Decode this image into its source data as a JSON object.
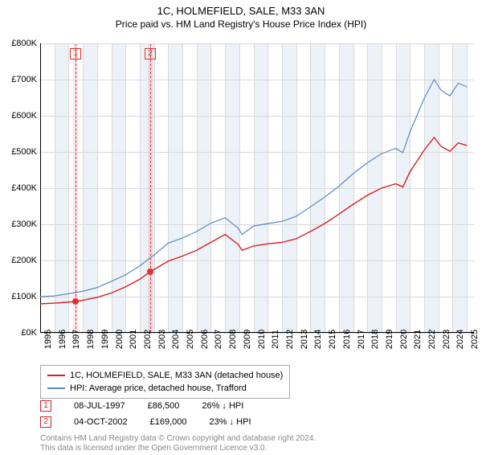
{
  "title": "1C, HOLMEFIELD, SALE, M33 3AN",
  "subtitle": "Price paid vs. HM Land Registry's House Price Index (HPI)",
  "chart": {
    "type": "line",
    "background_color": "#ffffff",
    "grid_color": "#d9d9d9",
    "grid_alt_band_color": "#edf2f8",
    "ylim": [
      0,
      800000
    ],
    "ytick_step": 100000,
    "ytick_labels": [
      "£0K",
      "£100K",
      "£200K",
      "£300K",
      "£400K",
      "£500K",
      "£600K",
      "£700K",
      "£800K"
    ],
    "xlim": [
      1995,
      2025.5
    ],
    "xticks": [
      1995,
      1996,
      1997,
      1998,
      1999,
      2000,
      2001,
      2002,
      2003,
      2004,
      2005,
      2006,
      2007,
      2008,
      2009,
      2010,
      2011,
      2012,
      2013,
      2014,
      2015,
      2016,
      2017,
      2018,
      2019,
      2020,
      2021,
      2022,
      2023,
      2024,
      2025
    ],
    "marker_band_color": "#e03131",
    "marker_band_opacity": 0.12,
    "series": [
      {
        "name": "HPI: Average price, detached house, Trafford",
        "color": "#5b89c3",
        "line_width": 1.2,
        "points": [
          [
            1995,
            100000
          ],
          [
            1996,
            102000
          ],
          [
            1997,
            108000
          ],
          [
            1998,
            115000
          ],
          [
            1999,
            125000
          ],
          [
            2000,
            142000
          ],
          [
            2001,
            160000
          ],
          [
            2002,
            185000
          ],
          [
            2003,
            215000
          ],
          [
            2004,
            248000
          ],
          [
            2005,
            262000
          ],
          [
            2006,
            280000
          ],
          [
            2007,
            303000
          ],
          [
            2008,
            318000
          ],
          [
            2008.9,
            290000
          ],
          [
            2009.2,
            272000
          ],
          [
            2010,
            295000
          ],
          [
            2011,
            302000
          ],
          [
            2012,
            308000
          ],
          [
            2013,
            322000
          ],
          [
            2014,
            348000
          ],
          [
            2015,
            375000
          ],
          [
            2016,
            405000
          ],
          [
            2017,
            440000
          ],
          [
            2018,
            470000
          ],
          [
            2019,
            495000
          ],
          [
            2020,
            510000
          ],
          [
            2020.5,
            498000
          ],
          [
            2021,
            555000
          ],
          [
            2022,
            648000
          ],
          [
            2022.7,
            700000
          ],
          [
            2023.2,
            670000
          ],
          [
            2023.8,
            655000
          ],
          [
            2024.4,
            690000
          ],
          [
            2025,
            680000
          ]
        ]
      },
      {
        "name": "1C, HOLMEFIELD, SALE, M33 3AN (detached house)",
        "color": "#d42020",
        "line_width": 1.4,
        "points": [
          [
            1995,
            80000
          ],
          [
            1996,
            82000
          ],
          [
            1997,
            85000
          ],
          [
            1997.5,
            86500
          ],
          [
            1998,
            90000
          ],
          [
            1999,
            98000
          ],
          [
            2000,
            110000
          ],
          [
            2001,
            127000
          ],
          [
            2002,
            148000
          ],
          [
            2002.75,
            169000
          ],
          [
            2003,
            175000
          ],
          [
            2004,
            198000
          ],
          [
            2005,
            212000
          ],
          [
            2006,
            228000
          ],
          [
            2007,
            250000
          ],
          [
            2008,
            272000
          ],
          [
            2008.9,
            245000
          ],
          [
            2009.2,
            228000
          ],
          [
            2010,
            240000
          ],
          [
            2011,
            246000
          ],
          [
            2012,
            250000
          ],
          [
            2013,
            260000
          ],
          [
            2014,
            280000
          ],
          [
            2015,
            302000
          ],
          [
            2016,
            328000
          ],
          [
            2017,
            355000
          ],
          [
            2018,
            380000
          ],
          [
            2019,
            400000
          ],
          [
            2020,
            412000
          ],
          [
            2020.5,
            403000
          ],
          [
            2021,
            445000
          ],
          [
            2022,
            505000
          ],
          [
            2022.7,
            540000
          ],
          [
            2023.2,
            515000
          ],
          [
            2023.8,
            502000
          ],
          [
            2024.4,
            525000
          ],
          [
            2025,
            518000
          ]
        ]
      }
    ],
    "transaction_markers": [
      {
        "id": "1",
        "x": 1997.5,
        "y": 86500
      },
      {
        "id": "2",
        "x": 2002.75,
        "y": 169000
      }
    ]
  },
  "legend": [
    {
      "label": "1C, HOLMEFIELD, SALE, M33 3AN (detached house)",
      "color": "#d42020"
    },
    {
      "label": "HPI: Average price, detached house, Trafford",
      "color": "#5b89c3"
    }
  ],
  "transactions": [
    {
      "id": "1",
      "date": "08-JUL-1997",
      "price": "£86,500",
      "delta": "26% ↓ HPI",
      "color": "#d42020"
    },
    {
      "id": "2",
      "date": "04-OCT-2002",
      "price": "£169,000",
      "delta": "23% ↓ HPI",
      "color": "#d42020"
    }
  ],
  "footer_lines": [
    "Contains HM Land Registry data © Crown copyright and database right 2024.",
    "This data is licensed under the Open Government Licence v3.0."
  ]
}
